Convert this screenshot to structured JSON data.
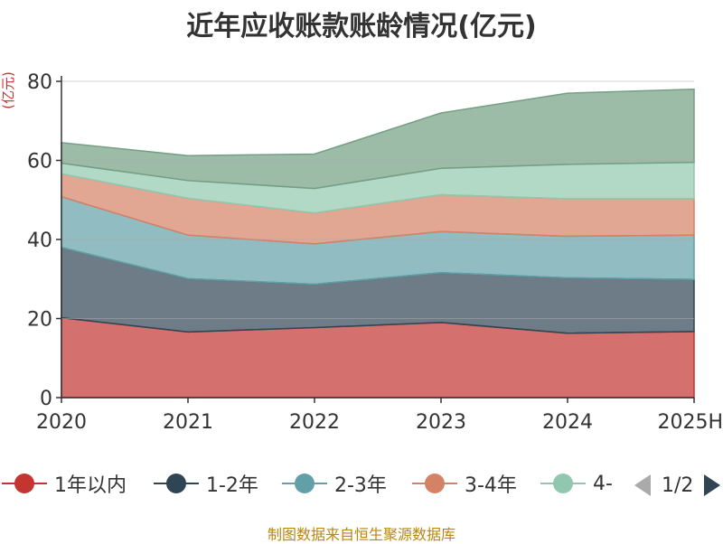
{
  "title": "近年应收账款账龄情况(亿元)",
  "source": "制图数据来自恒生聚源数据库",
  "chart_data": {
    "type": "area",
    "stacked": true,
    "title": "近年应收账款账龄情况(亿元)",
    "ylabel": "(亿元)",
    "xlabel": "",
    "categories": [
      "2020",
      "2021",
      "2022",
      "2023",
      "2024",
      "2025H"
    ],
    "ylim": [
      0,
      80
    ],
    "yticks": [
      0,
      20,
      40,
      60,
      80
    ],
    "grid": true,
    "legend_position": "bottom",
    "series": [
      {
        "name": "1年以内",
        "color": "#c23531",
        "values": [
          20.2,
          16.6,
          17.7,
          19.0,
          16.3,
          16.7
        ]
      },
      {
        "name": "1-2年",
        "color": "#2f4554",
        "values": [
          17.8,
          13.5,
          11.0,
          12.6,
          14.0,
          13.2
        ]
      },
      {
        "name": "2-3年",
        "color": "#61a0a8",
        "values": [
          12.8,
          11.0,
          10.2,
          10.4,
          10.5,
          11.2
        ]
      },
      {
        "name": "3-4年",
        "color": "#d48265",
        "values": [
          5.8,
          9.3,
          7.8,
          9.3,
          9.5,
          9.2
        ]
      },
      {
        "name": "4-",
        "color": "#91c7ae",
        "values": [
          2.7,
          4.5,
          6.2,
          6.7,
          8.7,
          9.2
        ]
      },
      {
        "name": "",
        "color": "#749f83",
        "values": [
          5.2,
          6.3,
          8.7,
          14.0,
          18.0,
          18.5
        ]
      }
    ]
  },
  "legend": {
    "items": [
      {
        "label": "1年以内",
        "color": "#c23531"
      },
      {
        "label": "1-2年",
        "color": "#2f4554"
      },
      {
        "label": "2-3年",
        "color": "#61a0a8"
      },
      {
        "label": "3-4年",
        "color": "#d48265"
      },
      {
        "label": "4-",
        "color": "#91c7ae"
      }
    ],
    "page_text": "1/2"
  }
}
